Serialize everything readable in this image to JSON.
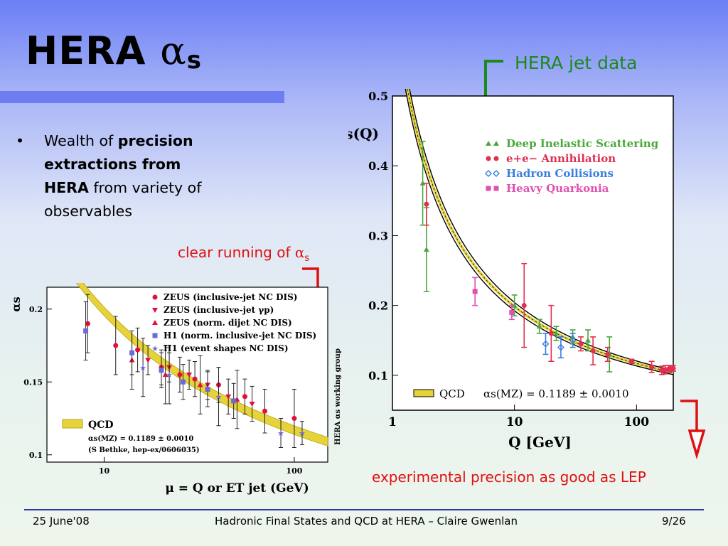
{
  "slide": {
    "title_main": "HERA",
    "title_alpha": "α",
    "title_sub": "s",
    "bullet": {
      "marker": "•",
      "pre": "Wealth of",
      "bold": "precision extractions from HERA",
      "post": "from variety of observables"
    },
    "annotations": {
      "jet_data": "HERA jet data",
      "running_prefix": "clear running of",
      "running_alpha": "α",
      "running_sub": "s",
      "lep": "experimental precision as good as LEP"
    },
    "footer": {
      "date": "25 June'08",
      "title": "Hadronic Final States and QCD at HERA – Claire Gwenlan",
      "page": "9/26"
    },
    "colors": {
      "green": "#1b8a1b",
      "red": "#e01010",
      "dis": "#4aa83a",
      "ee": "#e03050",
      "hadron": "#3a7fe0",
      "quarkonia": "#e050b0",
      "band": "#e6d33a"
    }
  },
  "chart_data": [
    {
      "type": "scatter",
      "ylabel": "αs(Q)",
      "xlabel": "Q [GeV]",
      "xscale": "log",
      "xlim": [
        1,
        200
      ],
      "ylim": [
        0.05,
        0.5
      ],
      "xticks": [
        "1",
        "10",
        "100"
      ],
      "yticks": [
        "0.1",
        "0.2",
        "0.3",
        "0.4",
        "0.5"
      ],
      "legend": [
        "Deep Inelastic Scattering",
        "e+e− Annihilation",
        "Hadron Collisions",
        "Heavy Quarkonia"
      ],
      "band_label": "QCD",
      "band_value": "αs(MZ) = 0.1189 ± 0.0010",
      "series": [
        {
          "name": "Deep Inelastic Scattering",
          "points": [
            [
              1.77,
              0.375,
              0.06
            ],
            [
              1.9,
              0.28,
              0.06
            ],
            [
              10,
              0.2,
              0.015
            ],
            [
              16,
              0.17,
              0.01
            ],
            [
              22,
              0.16,
              0.01
            ],
            [
              30,
              0.155,
              0.01
            ],
            [
              40,
              0.15,
              0.015
            ],
            [
              60,
              0.13,
              0.025
            ]
          ]
        },
        {
          "name": "e+e− Annihilation",
          "points": [
            [
              1.9,
              0.345,
              0.03
            ],
            [
              12,
              0.2,
              0.06
            ],
            [
              20,
              0.16,
              0.04
            ],
            [
              35,
              0.145,
              0.01
            ],
            [
              44,
              0.135,
              0.02
            ],
            [
              58,
              0.13,
              0.01
            ],
            [
              91,
              0.12,
              0.003
            ],
            [
              133,
              0.112,
              0.008
            ],
            [
              161,
              0.107,
              0.006
            ],
            [
              172,
              0.108,
              0.006
            ],
            [
              183,
              0.109,
              0.005
            ],
            [
              189,
              0.11,
              0.004
            ],
            [
              200,
              0.11,
              0.004
            ]
          ]
        },
        {
          "name": "Hadron Collisions",
          "points": [
            [
              18,
              0.145,
              0.015
            ],
            [
              24,
              0.14,
              0.015
            ],
            [
              30,
              0.15,
              0.01
            ]
          ]
        },
        {
          "name": "Heavy Quarkonia",
          "points": [
            [
              4.75,
              0.22,
              0.02
            ],
            [
              9.5,
              0.19,
              0.01
            ]
          ]
        }
      ]
    },
    {
      "type": "scatter",
      "ylabel": "αs",
      "xlabel": "μ = Q or ET jet (GeV)",
      "xscale": "log",
      "xlim": [
        5,
        150
      ],
      "ylim": [
        0.095,
        0.215
      ],
      "xticks": [
        "10",
        "100"
      ],
      "yticks": [
        "0.1",
        "0.15",
        "0.2"
      ],
      "side_label": "HERA αs working group",
      "legend": [
        "ZEUS (inclusive-jet NC DIS)",
        "ZEUS (inclusive-jet γp)",
        "ZEUS (norm. dijet NC DIS)",
        "H1 (norm. inclusive-jet NC DIS)",
        "H1 (event shapes NC DIS)"
      ],
      "band_label": "QCD",
      "band_value": "αs(MZ) = 0.1189 ± 0.0010",
      "band_ref": "(S Bethke, hep-ex/0606035)",
      "series": [
        {
          "name": "ZEUS (inclusive-jet NC DIS)",
          "points": [
            [
              8.2,
              0.19,
              0.02
            ],
            [
              11.5,
              0.175,
              0.02
            ],
            [
              15,
              0.172,
              0.015
            ],
            [
              20,
              0.16,
              0.012
            ],
            [
              25,
              0.155,
              0.012
            ],
            [
              30,
              0.152,
              0.012
            ],
            [
              40,
              0.148,
              0.012
            ],
            [
              55,
              0.14,
              0.012
            ],
            [
              70,
              0.13,
              0.015
            ],
            [
              100,
              0.125,
              0.02
            ]
          ]
        },
        {
          "name": "ZEUS (inclusive-jet γp)",
          "points": [
            [
              17,
              0.165,
              0.01
            ],
            [
              22,
              0.16,
              0.01
            ],
            [
              28,
              0.155,
              0.01
            ],
            [
              35,
              0.148,
              0.01
            ],
            [
              45,
              0.14,
              0.012
            ],
            [
              60,
              0.135,
              0.012
            ]
          ]
        },
        {
          "name": "ZEUS (norm. dijet NC DIS)",
          "points": [
            [
              14,
              0.165,
              0.02
            ],
            [
              21,
              0.155,
              0.02
            ],
            [
              32,
              0.148,
              0.02
            ],
            [
              50,
              0.138,
              0.02
            ]
          ]
        },
        {
          "name": "H1 (norm. inclusive-jet NC DIS)",
          "points": [
            [
              8,
              0.185,
              0.02
            ],
            [
              14,
              0.17,
              0.015
            ],
            [
              20,
              0.158,
              0.012
            ],
            [
              26,
              0.15,
              0.012
            ],
            [
              35,
              0.145,
              0.012
            ],
            [
              48,
              0.137,
              0.012
            ]
          ]
        },
        {
          "name": "H1 (event shapes NC DIS)",
          "points": [
            [
              16,
              0.16,
              0.02
            ],
            [
              22,
              0.155,
              0.02
            ],
            [
              40,
              0.14,
              0.02
            ],
            [
              85,
              0.115,
              0.01
            ],
            [
              110,
              0.115,
              0.008
            ]
          ]
        }
      ]
    }
  ]
}
